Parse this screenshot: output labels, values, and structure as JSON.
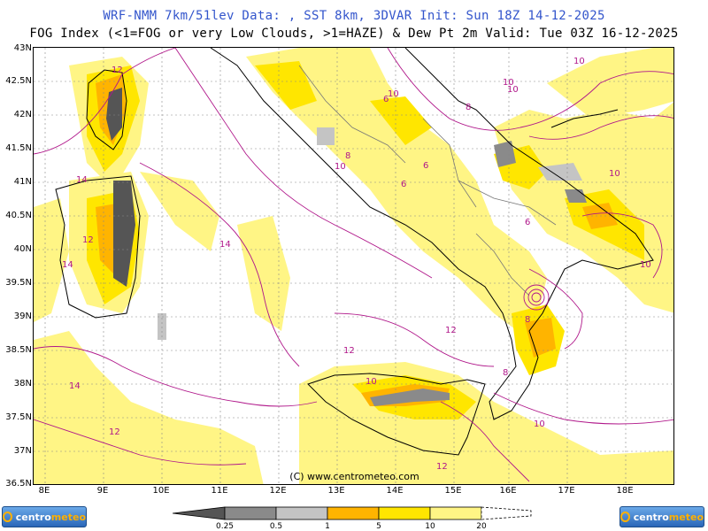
{
  "header": {
    "line1": "WRF-NMM 7km/51lev  Data: , SST 8km, 3DVAR  Init: Sun 18Z 14-12-2025",
    "line2": "FOG Index (<1=FOG or very Low Clouds, >1=HAZE) & Dew Pt 2m  Valid: Tue 03Z 16-12-2025"
  },
  "axes": {
    "lat_labels": [
      "43N",
      "42.5N",
      "42N",
      "41.5N",
      "41N",
      "40.5N",
      "40N",
      "39.5N",
      "39N",
      "38.5N",
      "38N",
      "37.5N",
      "37N",
      "36.5N"
    ],
    "lon_labels": [
      "8E",
      "9E",
      "10E",
      "11E",
      "12E",
      "13E",
      "14E",
      "15E",
      "16E",
      "17E",
      "18E"
    ]
  },
  "map": {
    "copyright": "(C) www.centrometeo.com",
    "contour_labels": [
      "12",
      "10",
      "14",
      "14",
      "12",
      "14",
      "10",
      "10",
      "8",
      "8",
      "6",
      "6",
      "6",
      "10",
      "12",
      "12",
      "14",
      "10",
      "10",
      "10",
      "10",
      "8",
      "8",
      "12",
      "10",
      "12",
      "6"
    ]
  },
  "legend": {
    "labels": [
      "0.25",
      "0.5",
      "1",
      "5",
      "10",
      "20"
    ],
    "colors": [
      "#555555",
      "#8a8a8a",
      "#c4c4c4",
      "#ffb400",
      "#ffe600",
      "#fff585",
      "#ffffff"
    ]
  },
  "logos": {
    "left": {
      "text_a": "centro",
      "text_b": "meteo"
    },
    "right": {
      "text_a": "centro",
      "text_b": "meteo"
    }
  }
}
